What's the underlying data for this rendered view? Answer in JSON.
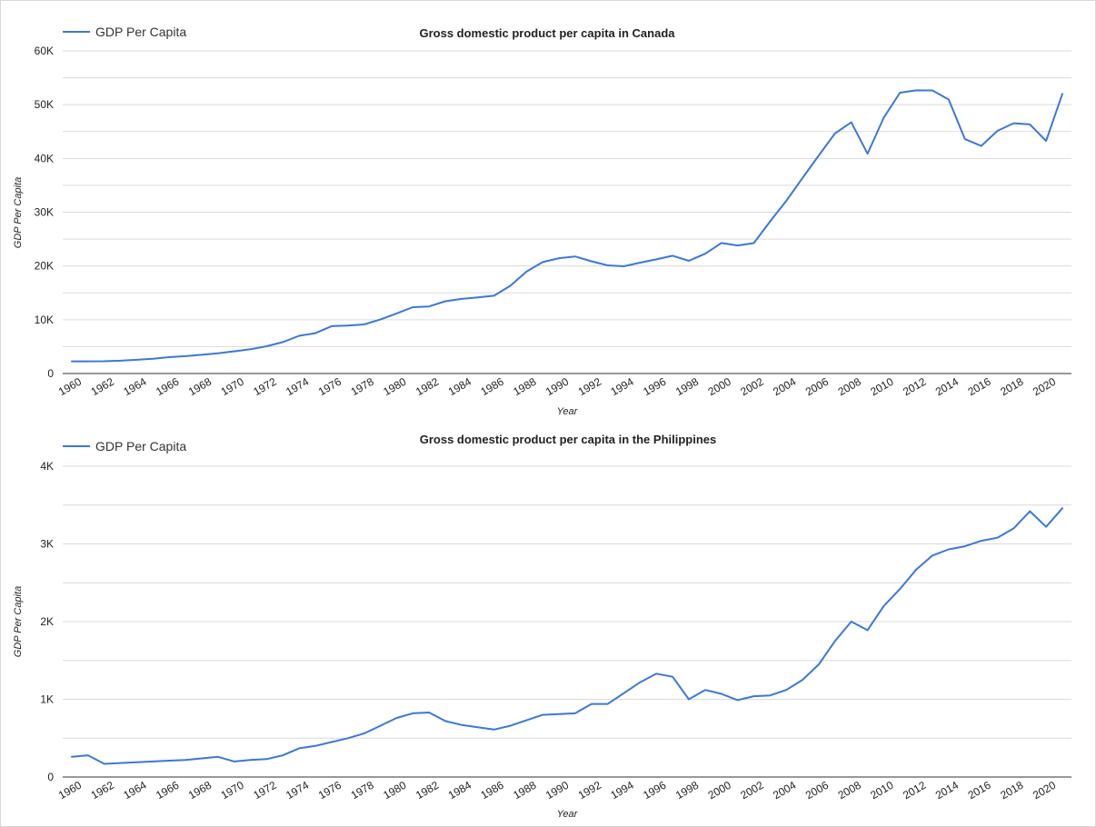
{
  "chart_data": [
    {
      "type": "line",
      "title": "Gross domestic product per capita in Canada",
      "xlabel": "Year",
      "ylabel": "GDP Per Capita",
      "legend": "top-left",
      "grid": true,
      "color": "#3a78d8",
      "ylim": [
        0,
        60000
      ],
      "yticks": [
        0,
        10000,
        20000,
        30000,
        40000,
        50000,
        60000
      ],
      "ytick_labels": [
        "0",
        "10K",
        "20K",
        "30K",
        "40K",
        "50K",
        "60K"
      ],
      "xticks": [
        1960,
        1962,
        1964,
        1966,
        1968,
        1970,
        1972,
        1974,
        1976,
        1978,
        1980,
        1982,
        1984,
        1986,
        1988,
        1990,
        1992,
        1994,
        1996,
        1998,
        2000,
        2002,
        2004,
        2006,
        2008,
        2010,
        2012,
        2014,
        2016,
        2018,
        2020
      ],
      "x": [
        1960,
        1961,
        1962,
        1963,
        1964,
        1965,
        1966,
        1967,
        1968,
        1969,
        1970,
        1971,
        1972,
        1973,
        1974,
        1975,
        1976,
        1977,
        1978,
        1979,
        1980,
        1981,
        1982,
        1983,
        1984,
        1985,
        1986,
        1987,
        1988,
        1989,
        1990,
        1991,
        1992,
        1993,
        1994,
        1995,
        1996,
        1997,
        1998,
        1999,
        2000,
        2001,
        2002,
        2003,
        2004,
        2005,
        2006,
        2007,
        2008,
        2009,
        2010,
        2011,
        2012,
        2013,
        2014,
        2015,
        2016,
        2017,
        2018,
        2019,
        2020,
        2021
      ],
      "series": [
        {
          "name": "GDP Per Capita",
          "values": [
            2260,
            2270,
            2290,
            2380,
            2550,
            2760,
            3040,
            3220,
            3480,
            3770,
            4120,
            4520,
            5070,
            5840,
            7010,
            7510,
            8810,
            8930,
            9120,
            10040,
            11170,
            12340,
            12480,
            13430,
            13880,
            14170,
            14460,
            16310,
            18940,
            20720,
            21450,
            21770,
            20870,
            20120,
            19940,
            20620,
            21230,
            21900,
            20960,
            22270,
            24270,
            23820,
            24260,
            28300,
            32120,
            36380,
            40560,
            44660,
            46710,
            40880,
            47560,
            52220,
            52670,
            52640,
            50960,
            43590,
            42320,
            45130,
            46550,
            46330,
            43260,
            52000
          ]
        }
      ]
    },
    {
      "type": "line",
      "title": "Gross domestic product per capita in the Philippines",
      "xlabel": "Year",
      "ylabel": "GDP Per Capita",
      "legend": "top-left",
      "grid": true,
      "color": "#3a78d8",
      "ylim": [
        0,
        4000
      ],
      "yticks": [
        0,
        1000,
        2000,
        3000,
        4000
      ],
      "ytick_labels": [
        "0",
        "1K",
        "2K",
        "3K",
        "4K"
      ],
      "xticks": [
        1960,
        1962,
        1964,
        1966,
        1968,
        1970,
        1972,
        1974,
        1976,
        1978,
        1980,
        1982,
        1984,
        1986,
        1988,
        1990,
        1992,
        1994,
        1996,
        1998,
        2000,
        2002,
        2004,
        2006,
        2008,
        2010,
        2012,
        2014,
        2016,
        2018,
        2020
      ],
      "x": [
        1960,
        1961,
        1962,
        1963,
        1964,
        1965,
        1966,
        1967,
        1968,
        1969,
        1970,
        1971,
        1972,
        1973,
        1974,
        1975,
        1976,
        1977,
        1978,
        1979,
        1980,
        1981,
        1982,
        1983,
        1984,
        1985,
        1986,
        1987,
        1988,
        1989,
        1990,
        1991,
        1992,
        1993,
        1994,
        1995,
        1996,
        1997,
        1998,
        1999,
        2000,
        2001,
        2002,
        2003,
        2004,
        2005,
        2006,
        2007,
        2008,
        2009,
        2010,
        2011,
        2012,
        2013,
        2014,
        2015,
        2016,
        2017,
        2018,
        2019,
        2020,
        2021
      ],
      "series": [
        {
          "name": "GDP Per Capita",
          "values": [
            260,
            280,
            170,
            180,
            190,
            200,
            210,
            220,
            240,
            260,
            200,
            220,
            230,
            280,
            370,
            400,
            450,
            500,
            560,
            660,
            760,
            820,
            830,
            720,
            670,
            640,
            610,
            660,
            730,
            800,
            810,
            820,
            940,
            940,
            1080,
            1220,
            1330,
            1290,
            1000,
            1120,
            1070,
            990,
            1040,
            1050,
            1120,
            1250,
            1450,
            1750,
            2000,
            1890,
            2200,
            2420,
            2670,
            2850,
            2930,
            2970,
            3040,
            3080,
            3200,
            3420,
            3220,
            3460
          ]
        }
      ]
    }
  ]
}
